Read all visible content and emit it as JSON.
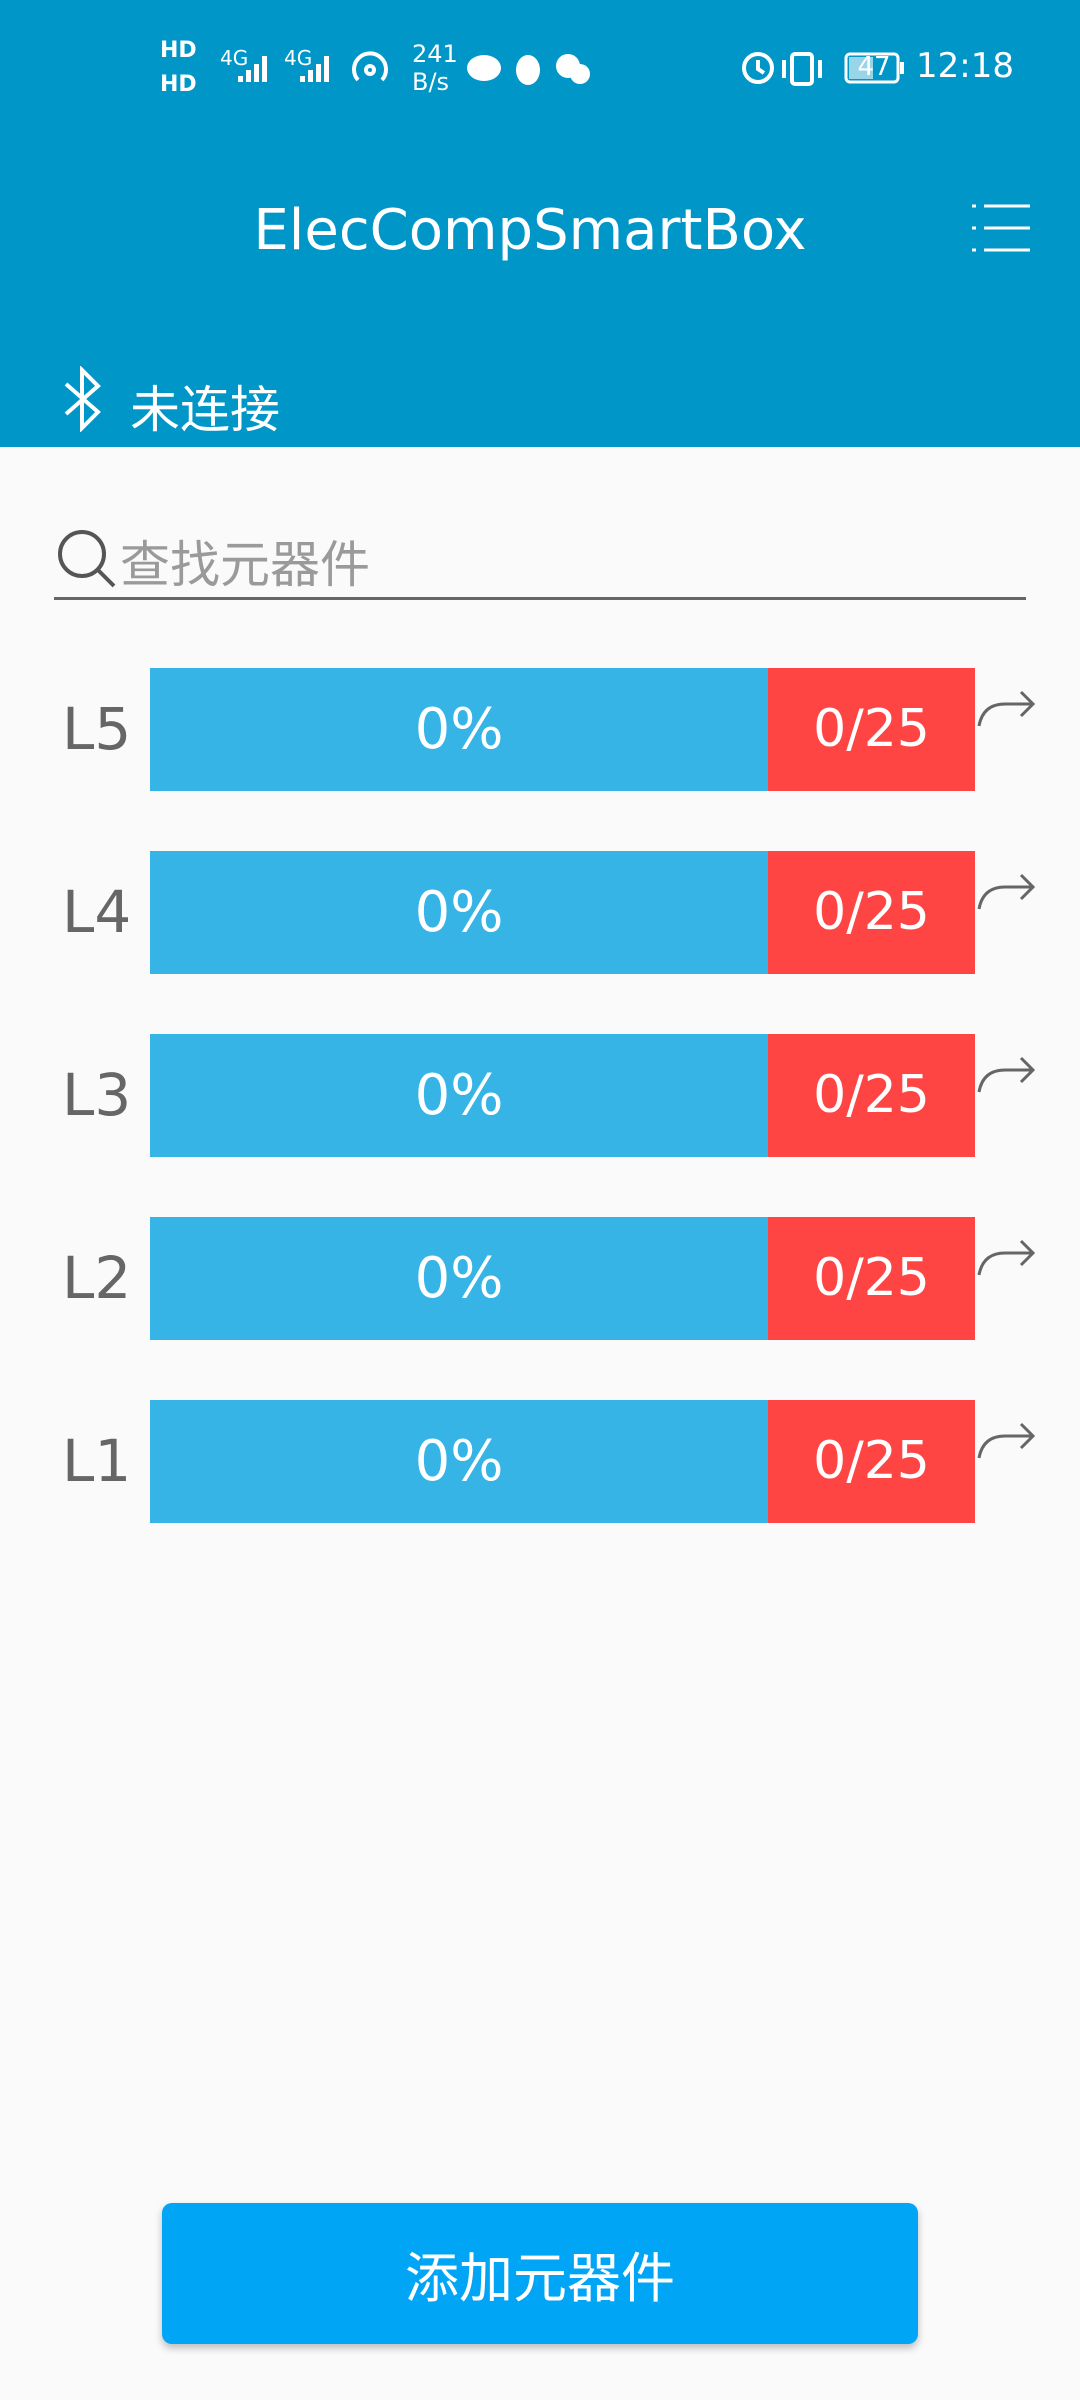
{
  "status_bar": {
    "hd": "HD",
    "network_1": "4G",
    "network_2": "4G",
    "speed_value": "241",
    "speed_unit": "B/s",
    "battery": "47",
    "time": "12:18"
  },
  "header": {
    "title": "ElecCompSmartBox",
    "connection_status": "未连接"
  },
  "search": {
    "placeholder": "查找元器件"
  },
  "rows": [
    {
      "label": "L5",
      "percent": "0%",
      "count": "0/25"
    },
    {
      "label": "L4",
      "percent": "0%",
      "count": "0/25"
    },
    {
      "label": "L3",
      "percent": "0%",
      "count": "0/25"
    },
    {
      "label": "L2",
      "percent": "0%",
      "count": "0/25"
    },
    {
      "label": "L1",
      "percent": "0%",
      "count": "0/25"
    }
  ],
  "button": {
    "label": "添加元器件"
  }
}
